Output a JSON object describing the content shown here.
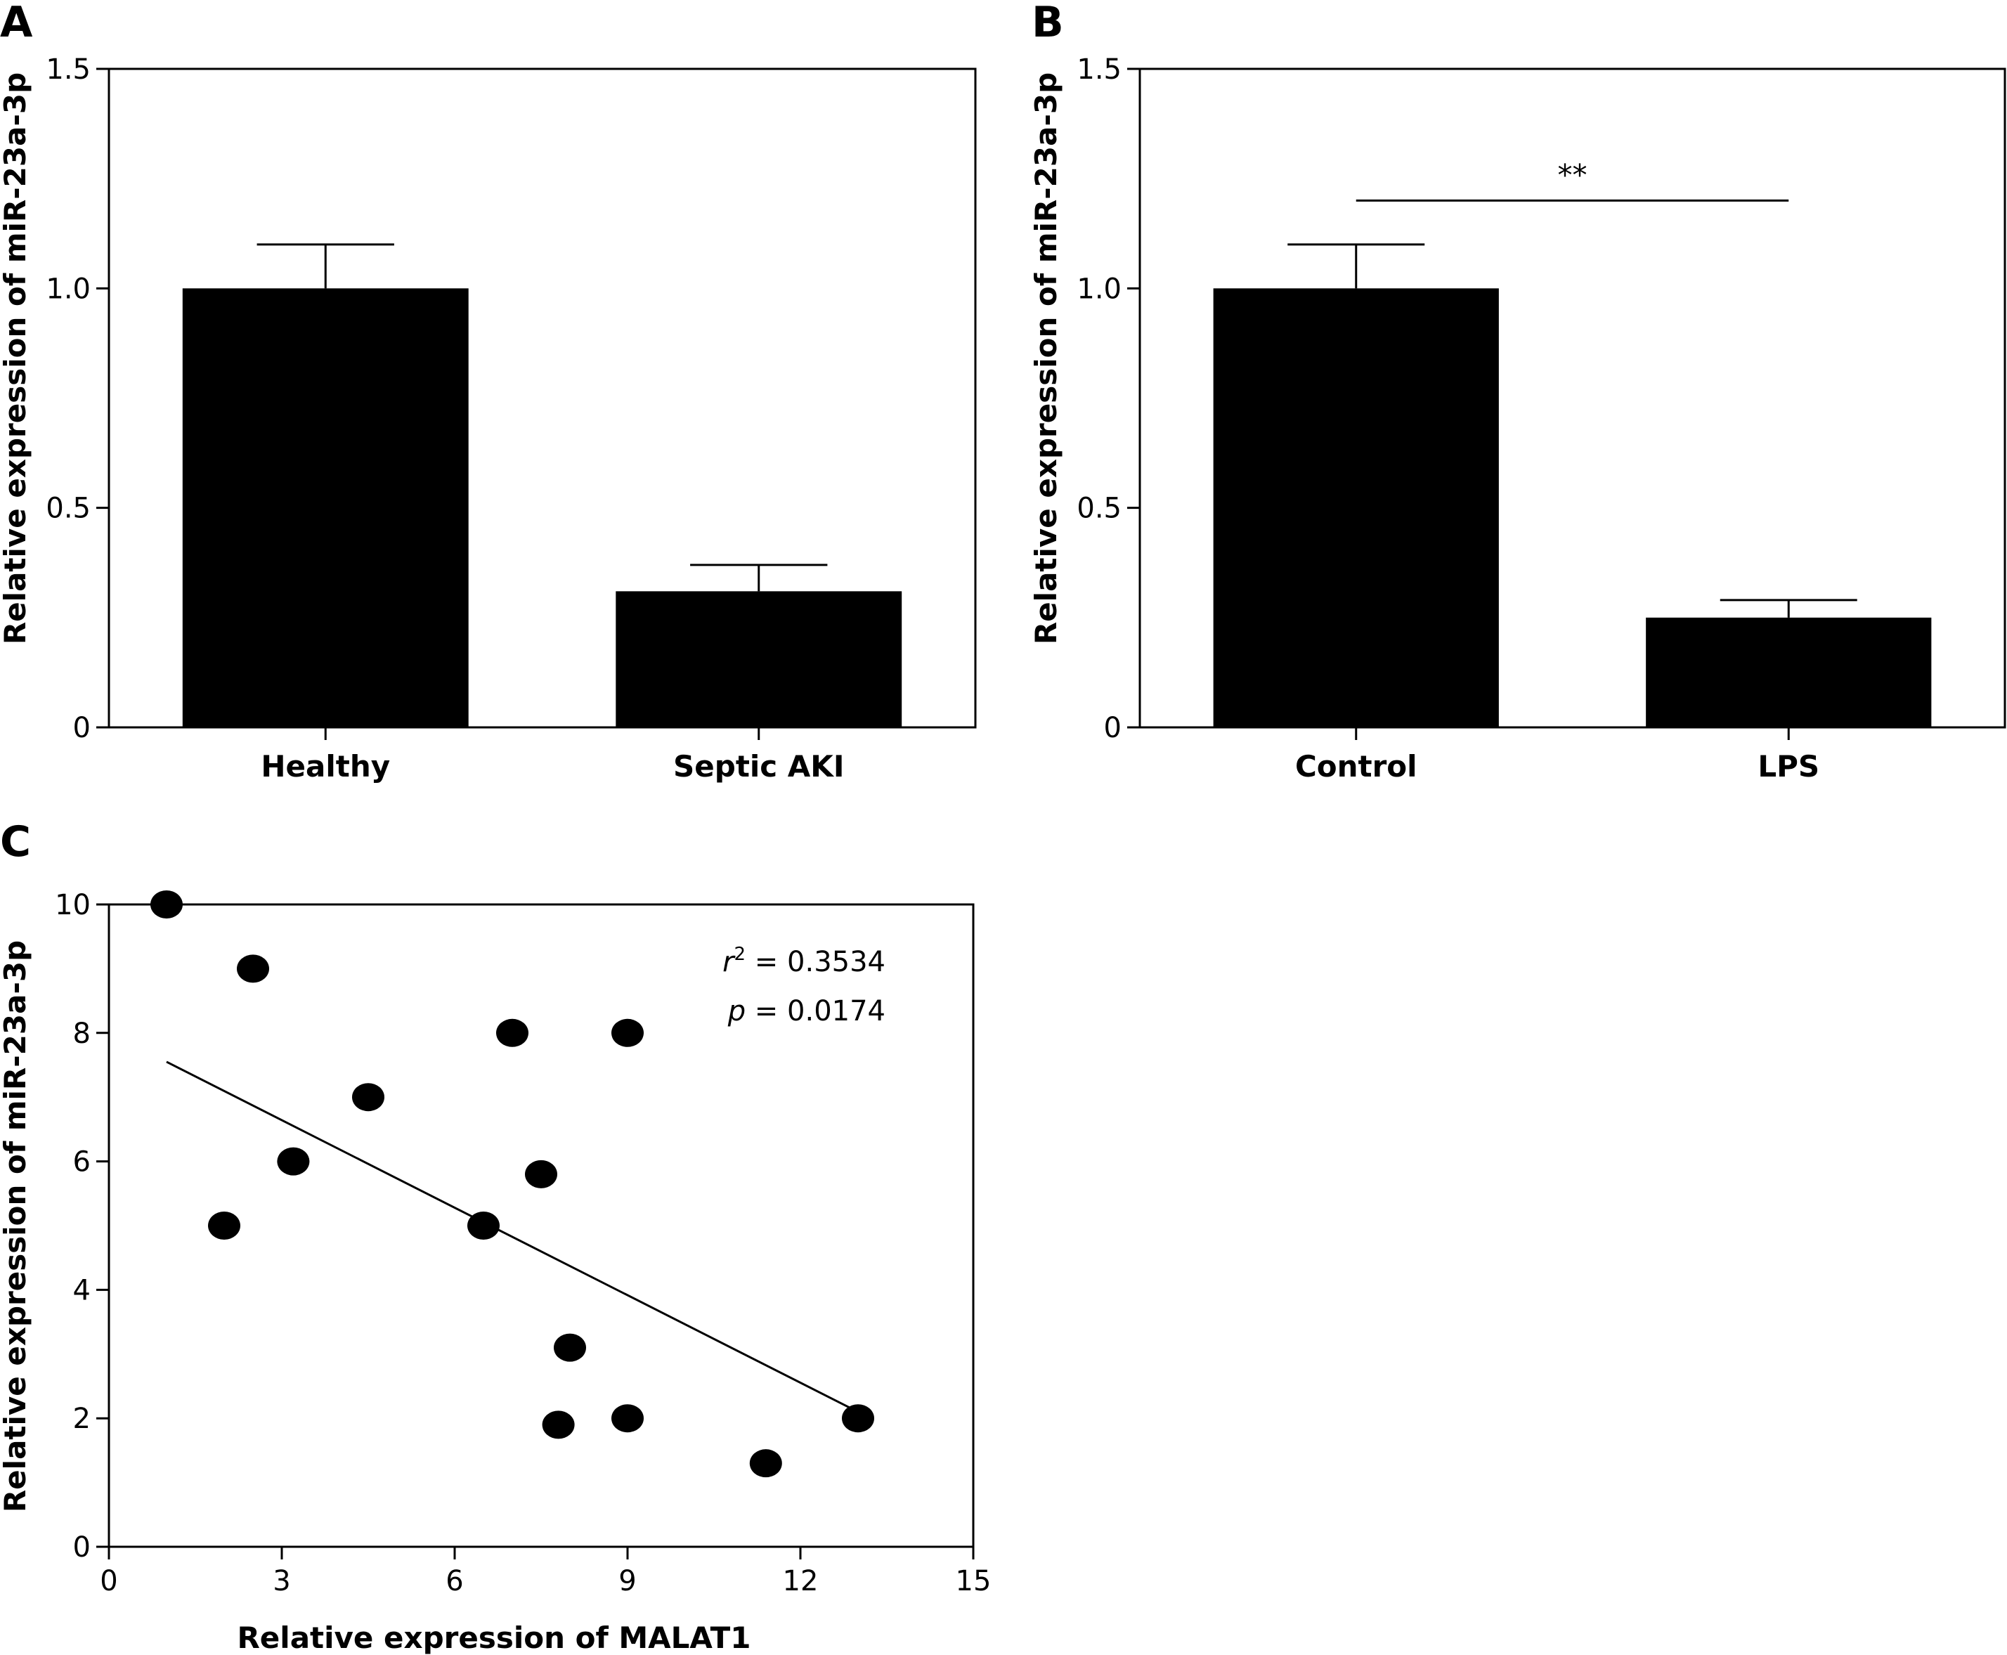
{
  "panels": {
    "A": "A",
    "B": "B",
    "C": "C"
  },
  "chart_data": [
    {
      "id": "A",
      "type": "bar",
      "categories": [
        "Healthy",
        "Septic AKI"
      ],
      "values": [
        1.0,
        0.31
      ],
      "errors": [
        0.1,
        0.06
      ],
      "ylabel": "Relative expression of miR-23a-3p",
      "xlabel": "",
      "ylim": [
        0,
        1.5
      ],
      "yticks": [
        0,
        0.5,
        1.0,
        1.5
      ],
      "ytick_labels": [
        "0",
        "0.5",
        "1.0",
        "1.5"
      ],
      "bar_color": "#000000",
      "grid": false
    },
    {
      "id": "B",
      "type": "bar",
      "categories": [
        "Control",
        "LPS"
      ],
      "values": [
        1.0,
        0.25
      ],
      "errors": [
        0.1,
        0.04
      ],
      "ylabel": "Relative expression of miR-23a-3p",
      "xlabel": "",
      "ylim": [
        0,
        1.5
      ],
      "yticks": [
        0,
        0.5,
        1.0,
        1.5
      ],
      "ytick_labels": [
        "0",
        "0.5",
        "1.0",
        "1.5"
      ],
      "significance": {
        "label": "**",
        "between": [
          "Control",
          "LPS"
        ],
        "level": 1.2
      },
      "bar_color": "#000000",
      "grid": false
    },
    {
      "id": "C",
      "type": "scatter",
      "x": [
        1.0,
        2.5,
        7.0,
        9.0,
        4.5,
        3.2,
        7.5,
        2.0,
        6.5,
        8.0,
        7.8,
        9.0,
        11.4,
        13.0
      ],
      "y": [
        10.0,
        9.0,
        8.0,
        8.0,
        7.0,
        6.0,
        5.8,
        5.0,
        5.0,
        3.1,
        1.9,
        2.0,
        1.3,
        2.0
      ],
      "fit_line": {
        "x": [
          1.0,
          13.0
        ],
        "y": [
          7.55,
          2.1
        ]
      },
      "xlabel": "Relative expression of MALAT1",
      "ylabel": "Relative expression of miR-23a-3p",
      "xlim": [
        0,
        15
      ],
      "ylim": [
        0,
        10
      ],
      "xticks": [
        0,
        3,
        6,
        9,
        12,
        15
      ],
      "yticks": [
        0,
        2,
        4,
        6,
        8,
        10
      ],
      "annotations": {
        "r2_label": "r",
        "r2_sup": "2",
        "r2_value": " = 0.3534",
        "p_label": "p",
        "p_value": " = 0.0174"
      },
      "grid": false
    }
  ]
}
